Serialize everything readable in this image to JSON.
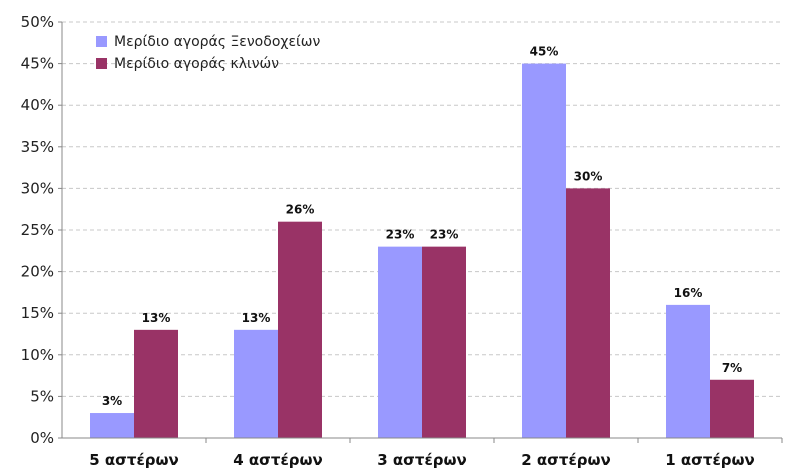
{
  "chart_data": {
    "type": "bar",
    "categories": [
      "5 αστέρων",
      "4 αστέρων",
      "3 αστέρων",
      "2 αστέρων",
      "1 αστέρων"
    ],
    "series": [
      {
        "name": "Μερίδιο αγοράς Ξενοδοχείων",
        "color": "#9999ff",
        "values": [
          3,
          13,
          23,
          45,
          16
        ],
        "labels": [
          "3%",
          "13%",
          "23%",
          "45%",
          "16%"
        ]
      },
      {
        "name": "Μερίδιο αγοράς κλινών",
        "color": "#993366",
        "values": [
          13,
          26,
          23,
          30,
          7
        ],
        "labels": [
          "13%",
          "26%",
          "23%",
          "30%",
          "7%"
        ]
      }
    ],
    "y_ticks": [
      "0%",
      "5%",
      "10%",
      "15%",
      "20%",
      "25%",
      "30%",
      "35%",
      "40%",
      "45%",
      "50%"
    ],
    "ylim": [
      0,
      50
    ],
    "grid": true,
    "legend_position": "top-left"
  }
}
